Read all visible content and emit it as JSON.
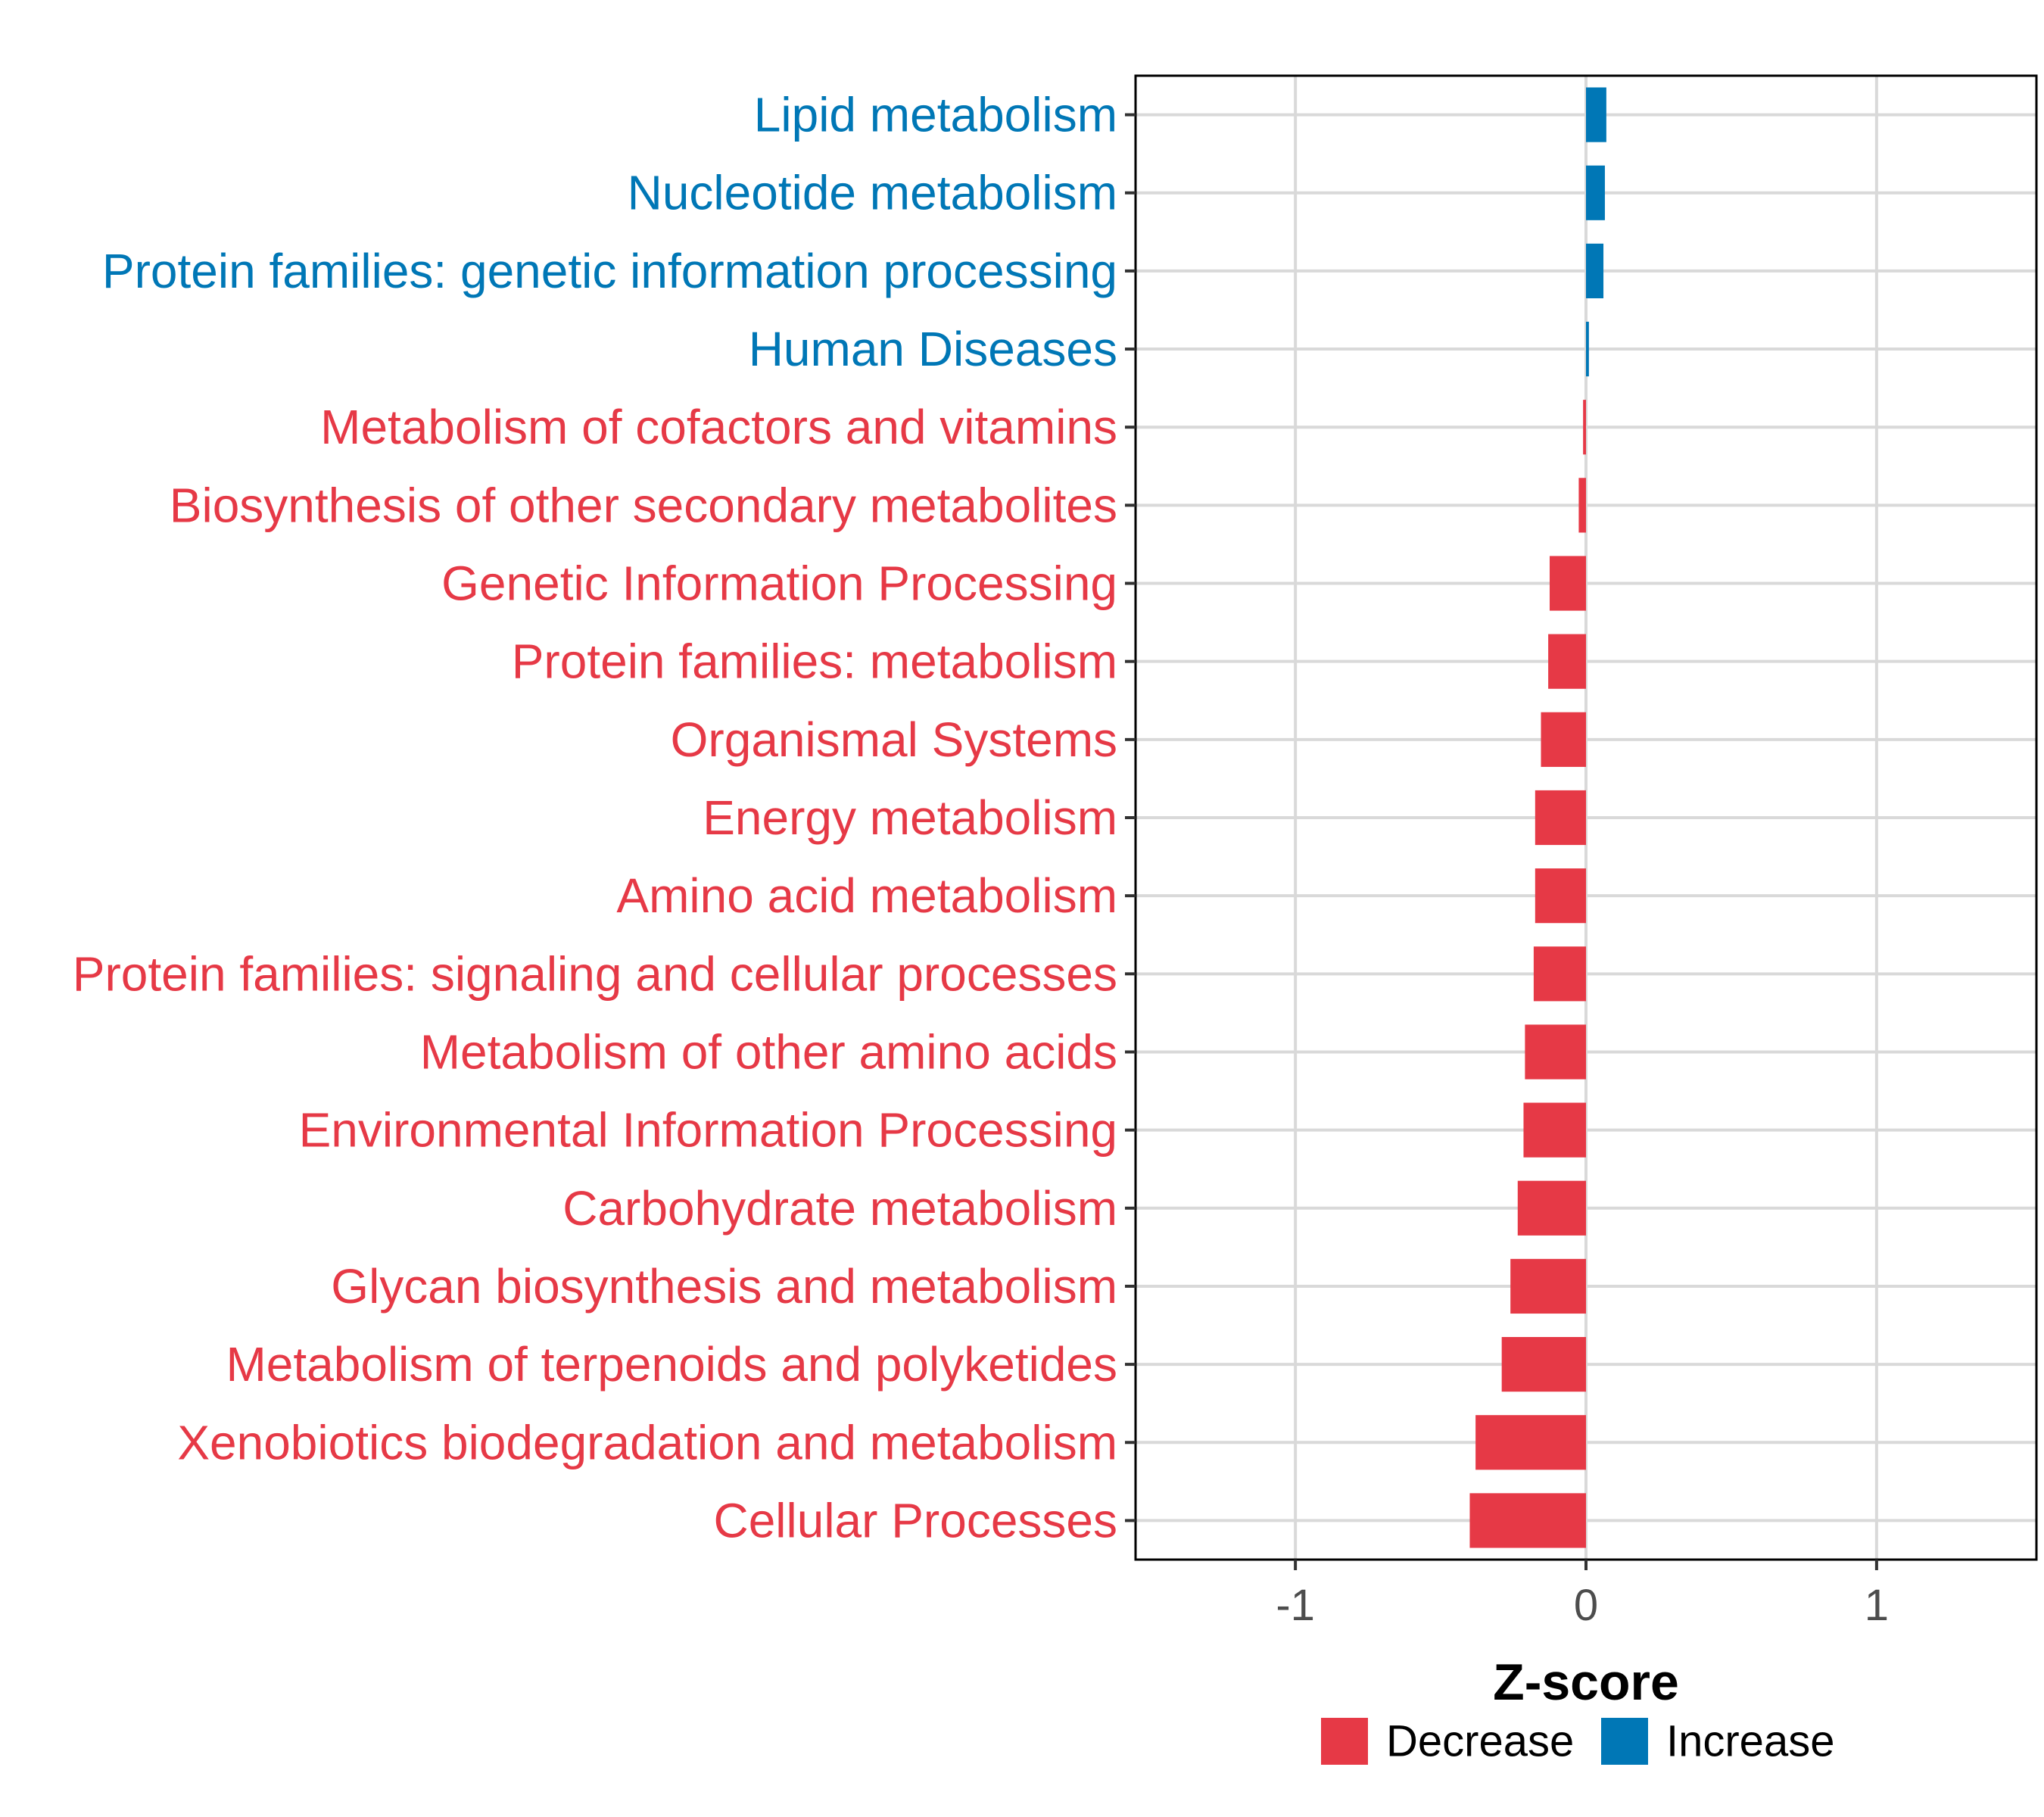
{
  "chart_data": {
    "type": "bar",
    "orientation": "horizontal",
    "xlabel": "Z-score",
    "ylabel": "",
    "xlim": [
      -1.55,
      1.55
    ],
    "xticks": [
      -1,
      0,
      1
    ],
    "xtick_labels": [
      "-1",
      "0",
      "1"
    ],
    "grid": true,
    "legend_position": "bottom",
    "colors": {
      "Decrease": "#E63946",
      "Increase": "#0077B6"
    },
    "categories": [
      "Lipid metabolism",
      "Nucleotide metabolism",
      "Protein families: genetic information processing",
      "Human Diseases",
      "Metabolism of cofactors and vitamins",
      "Biosynthesis of other secondary metabolites",
      "Genetic Information Processing",
      "Protein families: metabolism",
      "Organismal Systems",
      "Energy metabolism",
      "Amino acid metabolism",
      "Protein families: signaling and cellular processes",
      "Metabolism of other amino acids",
      "Environmental Information Processing",
      "Carbohydrate metabolism",
      "Glycan biosynthesis and metabolism",
      "Metabolism of terpenoids and polyketides",
      "Xenobiotics biodegradation and metabolism",
      "Cellular Processes"
    ],
    "values": [
      0.07,
      0.065,
      0.06,
      0.01,
      -0.01,
      -0.025,
      -0.125,
      -0.13,
      -0.155,
      -0.175,
      -0.175,
      -0.18,
      -0.21,
      -0.215,
      -0.235,
      -0.26,
      -0.29,
      -0.38,
      -0.4
    ],
    "groups": [
      "Increase",
      "Increase",
      "Increase",
      "Increase",
      "Decrease",
      "Decrease",
      "Decrease",
      "Decrease",
      "Decrease",
      "Decrease",
      "Decrease",
      "Decrease",
      "Decrease",
      "Decrease",
      "Decrease",
      "Decrease",
      "Decrease",
      "Decrease",
      "Decrease"
    ],
    "legend": [
      {
        "label": "Decrease",
        "color": "#E63946"
      },
      {
        "label": "Increase",
        "color": "#0077B6"
      }
    ]
  }
}
